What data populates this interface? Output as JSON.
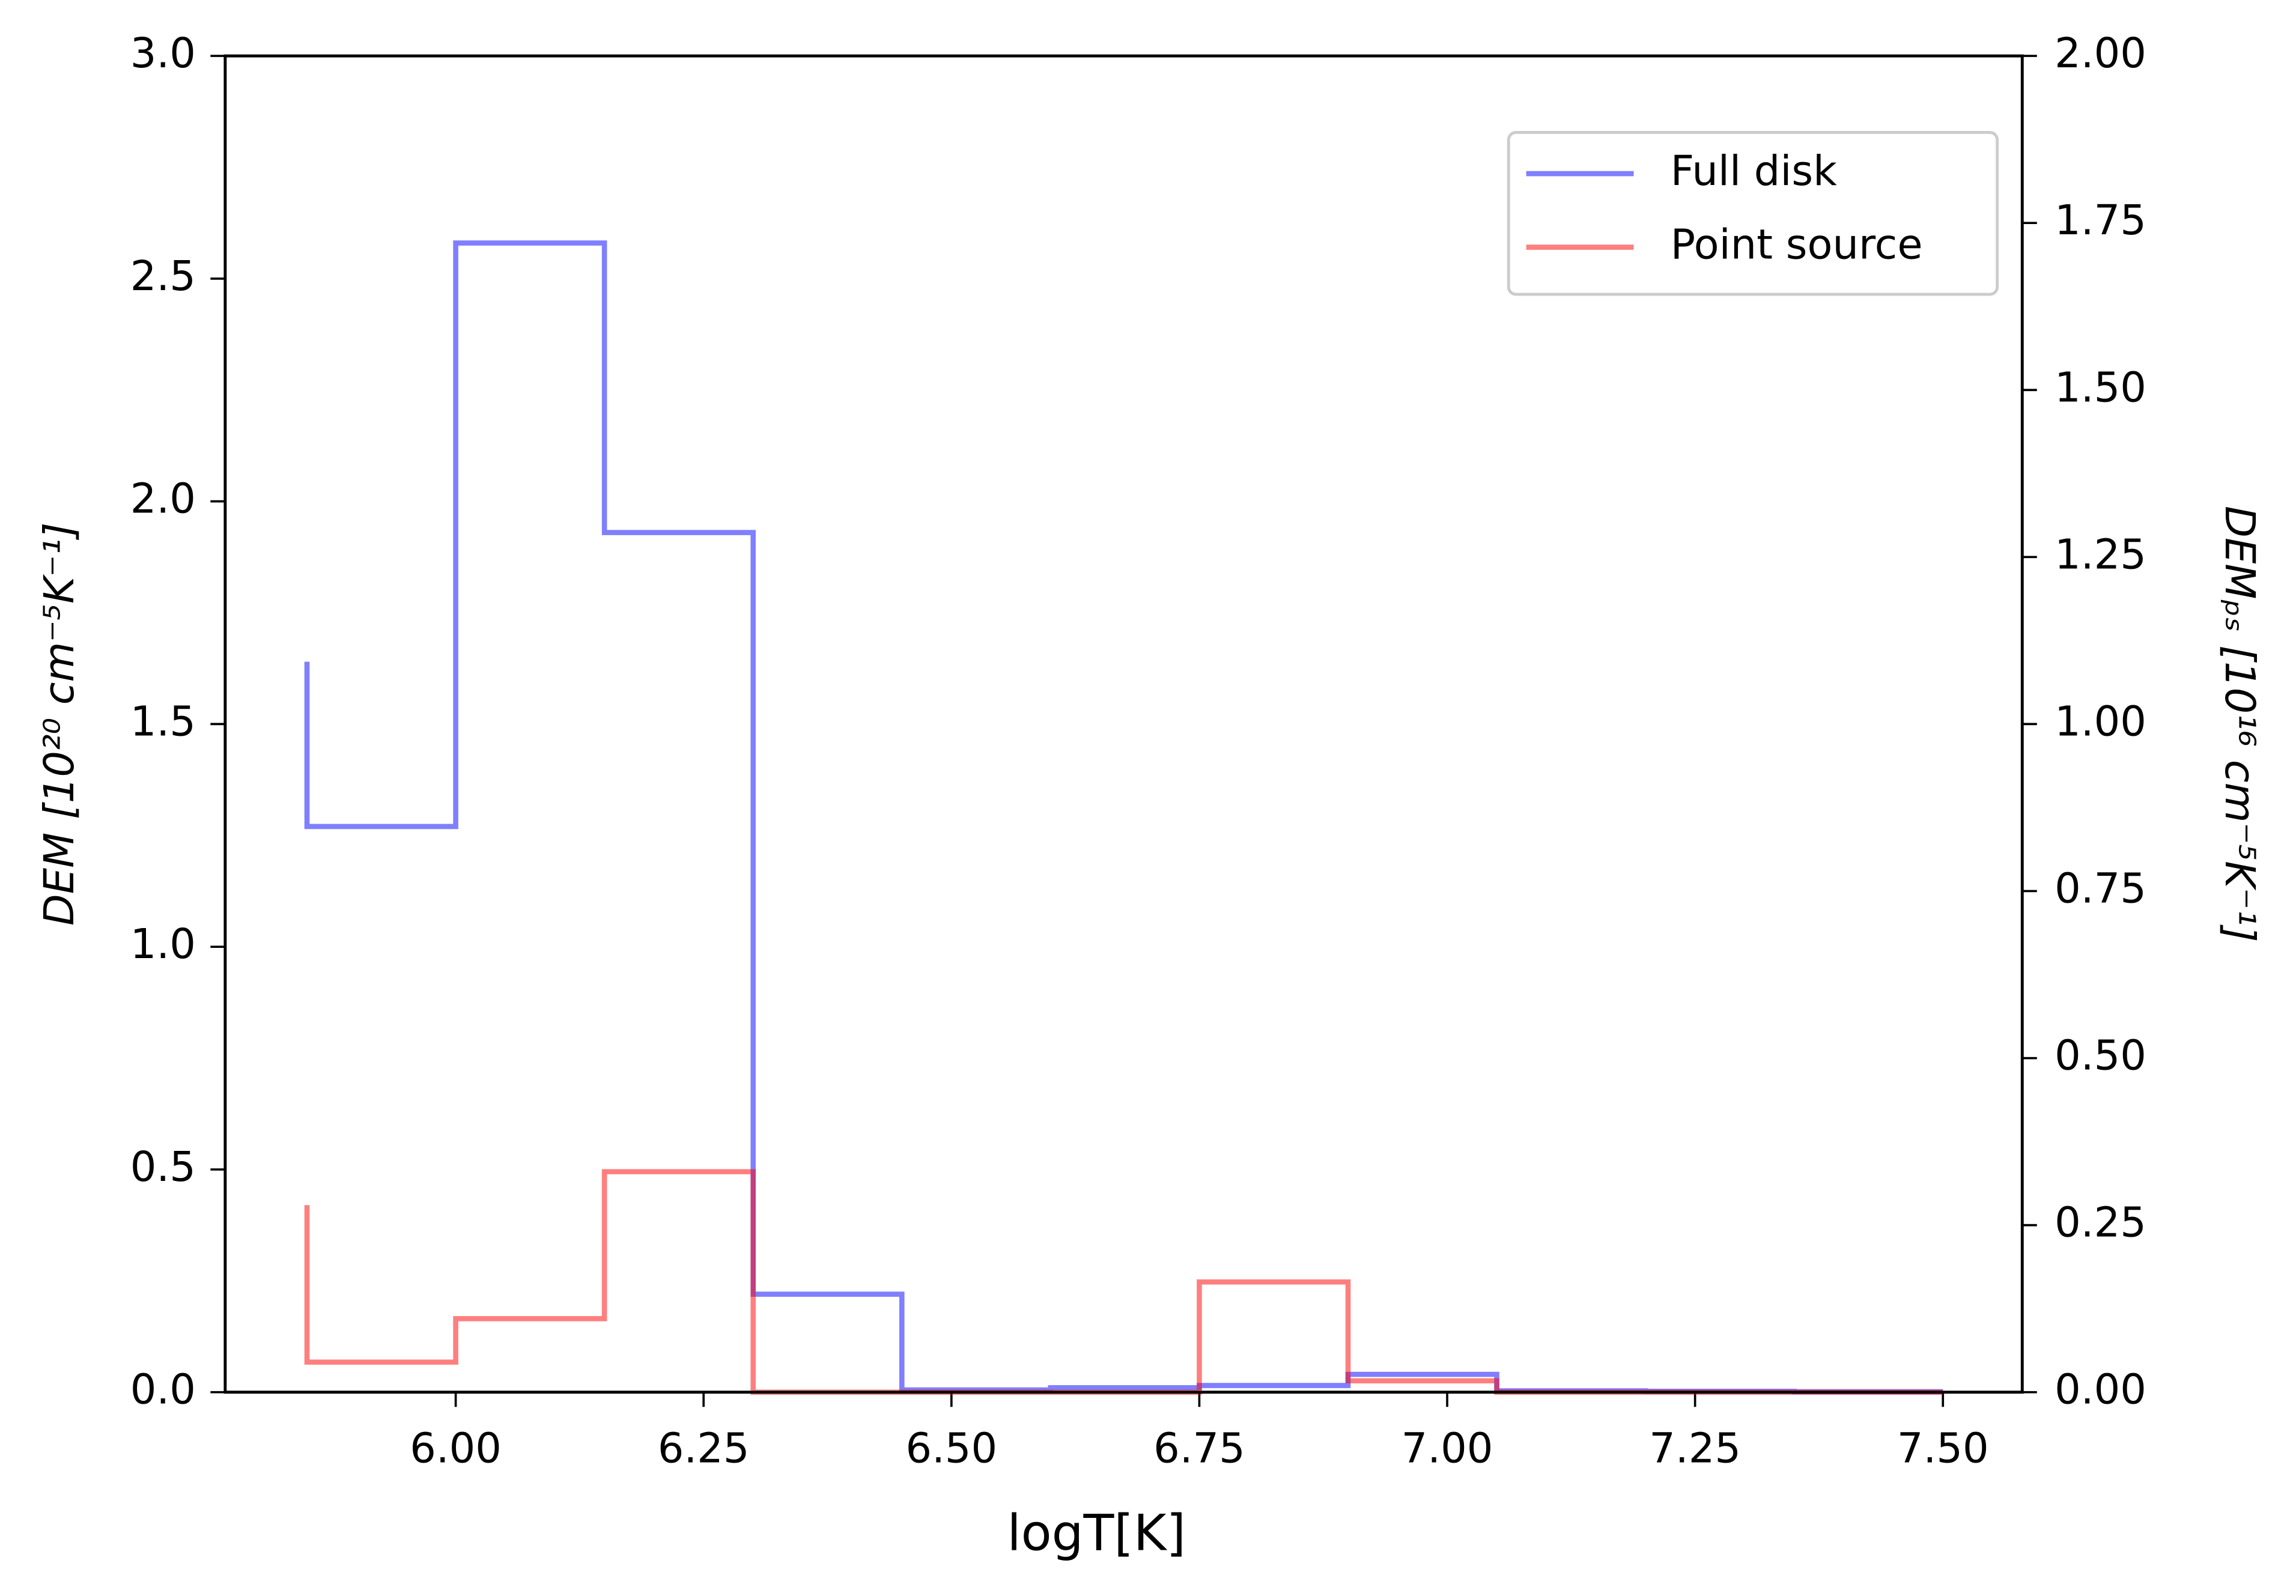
{
  "chart_data": {
    "type": "step",
    "xlabel": "logT[K]",
    "ylabel": "DEM [10²⁰ cm⁻⁵K⁻¹]",
    "y2label": "DEMₚₛ [10¹⁶ cm⁻⁵K⁻¹]",
    "x": [
      5.85,
      6.0,
      6.15,
      6.3,
      6.45,
      6.6,
      6.75,
      6.9,
      7.05,
      7.2,
      7.35,
      7.5
    ],
    "series": [
      {
        "name": "Full disk",
        "color": "#0000ff",
        "values": [
          1.64,
          1.27,
          2.58,
          1.93,
          0.22,
          0.005,
          0.01,
          0.015,
          0.04,
          0.003,
          0.002,
          0.001
        ]
      },
      {
        "name": "Point source",
        "color": "#ff0000",
        "axis": "y2",
        "values": [
          0.28,
          0.045,
          0.11,
          0.33,
          0,
          0,
          0,
          0.165,
          0.017,
          0,
          0,
          0
        ]
      }
    ],
    "alpha": 0.5,
    "xlim": [
      5.7675,
      7.58
    ],
    "xticks": [
      {
        "value": 6.0,
        "label": "6.00"
      },
      {
        "value": 6.25,
        "label": "6.25"
      },
      {
        "value": 6.5,
        "label": "6.50"
      },
      {
        "value": 6.75,
        "label": "6.75"
      },
      {
        "value": 7.0,
        "label": "7.00"
      },
      {
        "value": 7.25,
        "label": "7.25"
      },
      {
        "value": 7.5,
        "label": "7.50"
      }
    ],
    "ylim": [
      0,
      3
    ],
    "yticks": [
      {
        "value": 0,
        "label": "0.0"
      },
      0.5,
      {
        "value": 1,
        "label": "1.0"
      },
      1.5,
      {
        "value": 2,
        "label": "2.0"
      },
      2.5,
      {
        "value": 3,
        "label": "3.0"
      }
    ],
    "y2lim": [
      0,
      2
    ],
    "y2ticks": [
      {
        "value": 0,
        "label": "0.00"
      },
      {
        "value": 0.25,
        "label": "0.25"
      },
      {
        "value": 0.5,
        "label": "0.50"
      },
      {
        "value": 0.75,
        "label": "0.75"
      },
      {
        "value": 1,
        "label": "1.00"
      },
      {
        "value": 1.25,
        "label": "1.25"
      },
      {
        "value": 1.5,
        "label": "1.50"
      },
      {
        "value": 1.75,
        "label": "1.75"
      },
      {
        "value": 2,
        "label": "2.00"
      }
    ],
    "legend": "upper right"
  }
}
